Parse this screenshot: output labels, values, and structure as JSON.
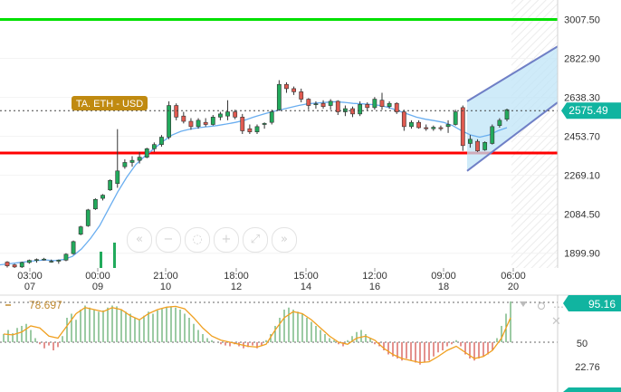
{
  "chart_data": {
    "type": "candlestick",
    "symbol_label": "TA. ETH - USD",
    "last_price": "2575.49",
    "y_ticks": [
      "3007.50",
      "2822.90",
      "2638.30",
      "2453.70",
      "2269.10",
      "2084.50",
      "1899.90"
    ],
    "y_range": [
      1830,
      3100
    ],
    "x_ticks": [
      {
        "time": "03:00",
        "date": "07"
      },
      {
        "time": "00:00",
        "date": "09"
      },
      {
        "time": "21:00",
        "date": "10"
      },
      {
        "time": "18:00",
        "date": "12"
      },
      {
        "time": "15:00",
        "date": "14"
      },
      {
        "time": "12:00",
        "date": "16"
      },
      {
        "time": "09:00",
        "date": "18"
      },
      {
        "time": "06:00",
        "date": "20"
      }
    ],
    "horizontal_levels": [
      {
        "price": 3007.5,
        "color": "#00e000"
      },
      {
        "price": 2375,
        "color": "#ff0000"
      }
    ],
    "up_color": "#22aa5c",
    "down_color": "#e05a50",
    "candles": [
      [
        1858,
        1862,
        1832,
        1840
      ],
      [
        1845,
        1850,
        1830,
        1835
      ],
      [
        1835,
        1860,
        1830,
        1856
      ],
      [
        1856,
        1870,
        1850,
        1866
      ],
      [
        1866,
        1875,
        1855,
        1870
      ],
      [
        1870,
        1878,
        1865,
        1872
      ],
      [
        1860,
        1870,
        1855,
        1862
      ],
      [
        1862,
        1870,
        1850,
        1867
      ],
      [
        1867,
        1900,
        1862,
        1895
      ],
      [
        1898,
        1960,
        1893,
        1955
      ],
      [
        1990,
        2030,
        1985,
        2025
      ],
      [
        2030,
        2110,
        2025,
        2105
      ],
      [
        2110,
        2160,
        2105,
        2155
      ],
      [
        2160,
        2180,
        2150,
        2175
      ],
      [
        2200,
        2250,
        2195,
        2245
      ],
      [
        2230,
        2488,
        2210,
        2290
      ],
      [
        2310,
        2345,
        2300,
        2330
      ],
      [
        2330,
        2360,
        2310,
        2340
      ],
      [
        2340,
        2380,
        2325,
        2355
      ],
      [
        2355,
        2400,
        2350,
        2395
      ],
      [
        2395,
        2425,
        2380,
        2415
      ],
      [
        2415,
        2460,
        2405,
        2450
      ],
      [
        2450,
        2620,
        2440,
        2600
      ],
      [
        2600,
        2610,
        2530,
        2545
      ],
      [
        2550,
        2570,
        2515,
        2525
      ],
      [
        2525,
        2540,
        2485,
        2500
      ],
      [
        2500,
        2540,
        2490,
        2530
      ],
      [
        2520,
        2540,
        2500,
        2510
      ],
      [
        2510,
        2555,
        2505,
        2545
      ],
      [
        2545,
        2570,
        2530,
        2560
      ],
      [
        2550,
        2625,
        2530,
        2570
      ],
      [
        2570,
        2580,
        2535,
        2545
      ],
      [
        2545,
        2560,
        2465,
        2480
      ],
      [
        2490,
        2510,
        2465,
        2475
      ],
      [
        2475,
        2510,
        2465,
        2500
      ],
      [
        2510,
        2520,
        2490,
        2515
      ],
      [
        2520,
        2580,
        2510,
        2570
      ],
      [
        2580,
        2720,
        2575,
        2700
      ],
      [
        2700,
        2710,
        2660,
        2680
      ],
      [
        2680,
        2690,
        2650,
        2665
      ],
      [
        2665,
        2680,
        2615,
        2630
      ],
      [
        2630,
        2635,
        2580,
        2600
      ],
      [
        2605,
        2620,
        2585,
        2608
      ],
      [
        2610,
        2625,
        2585,
        2595
      ],
      [
        2600,
        2630,
        2580,
        2620
      ],
      [
        2620,
        2625,
        2555,
        2570
      ],
      [
        2570,
        2600,
        2550,
        2585
      ],
      [
        2585,
        2595,
        2545,
        2560
      ],
      [
        2560,
        2620,
        2550,
        2605
      ],
      [
        2605,
        2615,
        2575,
        2590
      ],
      [
        2590,
        2640,
        2580,
        2630
      ],
      [
        2625,
        2660,
        2580,
        2595
      ],
      [
        2595,
        2620,
        2585,
        2610
      ],
      [
        2610,
        2615,
        2560,
        2570
      ],
      [
        2570,
        2580,
        2480,
        2500
      ],
      [
        2500,
        2530,
        2490,
        2520
      ],
      [
        2520,
        2530,
        2490,
        2495
      ],
      [
        2495,
        2510,
        2480,
        2490
      ],
      [
        2490,
        2505,
        2480,
        2497
      ],
      [
        2495,
        2505,
        2480,
        2490
      ],
      [
        2500,
        2530,
        2470,
        2510
      ],
      [
        2510,
        2580,
        2505,
        2570
      ],
      [
        2590,
        2600,
        2385,
        2410
      ],
      [
        2420,
        2460,
        2400,
        2440
      ],
      [
        2430,
        2440,
        2380,
        2385
      ],
      [
        2390,
        2430,
        2385,
        2425
      ],
      [
        2420,
        2510,
        2415,
        2500
      ],
      [
        2505,
        2540,
        2495,
        2530
      ],
      [
        2535,
        2585,
        2525,
        2580
      ]
    ],
    "ma_line": [
      [
        0,
        1845
      ],
      [
        10,
        1850
      ],
      [
        20,
        1855
      ],
      [
        30,
        1860
      ],
      [
        40,
        1865
      ],
      [
        50,
        1868
      ],
      [
        60,
        1865
      ],
      [
        70,
        1870
      ],
      [
        80,
        1885
      ],
      [
        90,
        1920
      ],
      [
        100,
        1970
      ],
      [
        110,
        2030
      ],
      [
        120,
        2110
      ],
      [
        130,
        2190
      ],
      [
        140,
        2260
      ],
      [
        150,
        2320
      ],
      [
        160,
        2360
      ],
      [
        170,
        2395
      ],
      [
        180,
        2430
      ],
      [
        190,
        2460
      ],
      [
        200,
        2478
      ],
      [
        210,
        2488
      ],
      [
        220,
        2495
      ],
      [
        230,
        2500
      ],
      [
        240,
        2505
      ],
      [
        250,
        2512
      ],
      [
        260,
        2520
      ],
      [
        270,
        2530
      ],
      [
        280,
        2545
      ],
      [
        290,
        2558
      ],
      [
        300,
        2570
      ],
      [
        310,
        2580
      ],
      [
        320,
        2590
      ],
      [
        330,
        2600
      ],
      [
        340,
        2608
      ],
      [
        350,
        2612
      ],
      [
        360,
        2615
      ],
      [
        370,
        2618
      ],
      [
        380,
        2615
      ],
      [
        390,
        2610
      ],
      [
        400,
        2608
      ],
      [
        410,
        2605
      ],
      [
        420,
        2600
      ],
      [
        430,
        2590
      ],
      [
        440,
        2575
      ],
      [
        450,
        2560
      ],
      [
        460,
        2545
      ],
      [
        470,
        2535
      ],
      [
        480,
        2528
      ],
      [
        490,
        2520
      ],
      [
        500,
        2505
      ],
      [
        510,
        2480
      ],
      [
        520,
        2460
      ],
      [
        530,
        2450
      ],
      [
        540,
        2460
      ],
      [
        550,
        2480
      ],
      [
        560,
        2495
      ]
    ],
    "channel": {
      "upper": [
        [
          516,
          2620
        ],
        [
          616,
          2880
        ]
      ],
      "lower": [
        [
          516,
          2290
        ],
        [
          616,
          2615
        ]
      ]
    },
    "volume_bars": [
      {
        "x": 110,
        "h": 18
      },
      {
        "x": 125,
        "h": 28
      }
    ],
    "oscillator": {
      "value_label": "78.697",
      "ticks": [
        "95.16",
        "50",
        "22.76"
      ],
      "bars": [
        [
          0,
          20
        ],
        [
          5,
          30
        ],
        [
          10,
          22
        ],
        [
          15,
          35
        ],
        [
          20,
          40
        ],
        [
          25,
          45
        ],
        [
          30,
          30
        ],
        [
          35,
          10
        ],
        [
          40,
          -5
        ],
        [
          45,
          -15
        ],
        [
          50,
          -8
        ],
        [
          55,
          -20
        ],
        [
          60,
          -12
        ],
        [
          65,
          15
        ],
        [
          70,
          60
        ],
        [
          75,
          70
        ],
        [
          80,
          55
        ],
        [
          85,
          80
        ],
        [
          90,
          90
        ],
        [
          95,
          85
        ],
        [
          100,
          80
        ],
        [
          105,
          75
        ],
        [
          110,
          78
        ],
        [
          115,
          85
        ],
        [
          120,
          90
        ],
        [
          125,
          88
        ],
        [
          130,
          80
        ],
        [
          135,
          75
        ],
        [
          140,
          70
        ],
        [
          145,
          60
        ],
        [
          150,
          55
        ],
        [
          155,
          65
        ],
        [
          160,
          75
        ],
        [
          165,
          70
        ],
        [
          170,
          78
        ],
        [
          175,
          82
        ],
        [
          180,
          86
        ],
        [
          185,
          88
        ],
        [
          190,
          85
        ],
        [
          195,
          80
        ],
        [
          200,
          70
        ],
        [
          205,
          60
        ],
        [
          210,
          45
        ],
        [
          215,
          30
        ],
        [
          220,
          20
        ],
        [
          225,
          10
        ],
        [
          230,
          5
        ],
        [
          235,
          0
        ],
        [
          240,
          -5
        ],
        [
          245,
          -8
        ],
        [
          250,
          -10
        ],
        [
          255,
          -5
        ],
        [
          260,
          -10
        ],
        [
          265,
          -15
        ],
        [
          270,
          -12
        ],
        [
          275,
          -8
        ],
        [
          280,
          -15
        ],
        [
          285,
          -10
        ],
        [
          290,
          5
        ],
        [
          295,
          20
        ],
        [
          300,
          40
        ],
        [
          305,
          60
        ],
        [
          310,
          80
        ],
        [
          315,
          85
        ],
        [
          320,
          80
        ],
        [
          325,
          75
        ],
        [
          330,
          70
        ],
        [
          335,
          60
        ],
        [
          340,
          50
        ],
        [
          345,
          40
        ],
        [
          350,
          30
        ],
        [
          355,
          20
        ],
        [
          360,
          10
        ],
        [
          365,
          5
        ],
        [
          370,
          -5
        ],
        [
          375,
          -10
        ],
        [
          380,
          5
        ],
        [
          385,
          15
        ],
        [
          390,
          25
        ],
        [
          395,
          30
        ],
        [
          400,
          20
        ],
        [
          405,
          10
        ],
        [
          410,
          -5
        ],
        [
          415,
          -10
        ],
        [
          420,
          -20
        ],
        [
          425,
          -30
        ],
        [
          430,
          -35
        ],
        [
          435,
          -40
        ],
        [
          440,
          -45
        ],
        [
          445,
          -40
        ],
        [
          450,
          -45
        ],
        [
          455,
          -50
        ],
        [
          460,
          -55
        ],
        [
          465,
          -50
        ],
        [
          470,
          -45
        ],
        [
          475,
          -35
        ],
        [
          480,
          -25
        ],
        [
          485,
          -20
        ],
        [
          490,
          -10
        ],
        [
          495,
          -5
        ],
        [
          500,
          5
        ],
        [
          505,
          -10
        ],
        [
          510,
          -30
        ],
        [
          515,
          -40
        ],
        [
          520,
          -45
        ],
        [
          525,
          -40
        ],
        [
          530,
          -35
        ],
        [
          535,
          -30
        ],
        [
          540,
          -20
        ],
        [
          545,
          10
        ],
        [
          550,
          40
        ],
        [
          555,
          70
        ],
        [
          560,
          100
        ]
      ],
      "line": [
        [
          0,
          20
        ],
        [
          10,
          18
        ],
        [
          20,
          25
        ],
        [
          30,
          40
        ],
        [
          40,
          35
        ],
        [
          50,
          15
        ],
        [
          60,
          10
        ],
        [
          70,
          40
        ],
        [
          80,
          70
        ],
        [
          90,
          85
        ],
        [
          100,
          80
        ],
        [
          110,
          75
        ],
        [
          120,
          85
        ],
        [
          130,
          80
        ],
        [
          140,
          65
        ],
        [
          150,
          55
        ],
        [
          160,
          70
        ],
        [
          170,
          80
        ],
        [
          180,
          86
        ],
        [
          190,
          88
        ],
        [
          200,
          82
        ],
        [
          210,
          60
        ],
        [
          220,
          35
        ],
        [
          230,
          15
        ],
        [
          240,
          5
        ],
        [
          250,
          0
        ],
        [
          260,
          -5
        ],
        [
          270,
          -10
        ],
        [
          280,
          -12
        ],
        [
          290,
          -5
        ],
        [
          300,
          30
        ],
        [
          310,
          60
        ],
        [
          320,
          75
        ],
        [
          330,
          70
        ],
        [
          340,
          55
        ],
        [
          350,
          35
        ],
        [
          360,
          15
        ],
        [
          370,
          0
        ],
        [
          380,
          -5
        ],
        [
          390,
          10
        ],
        [
          400,
          15
        ],
        [
          410,
          5
        ],
        [
          420,
          -15
        ],
        [
          430,
          -30
        ],
        [
          440,
          -40
        ],
        [
          450,
          -45
        ],
        [
          460,
          -50
        ],
        [
          470,
          -48
        ],
        [
          480,
          -35
        ],
        [
          490,
          -20
        ],
        [
          500,
          -10
        ],
        [
          510,
          -25
        ],
        [
          520,
          -40
        ],
        [
          530,
          -35
        ],
        [
          540,
          -20
        ],
        [
          550,
          10
        ],
        [
          560,
          60
        ]
      ]
    }
  }
}
